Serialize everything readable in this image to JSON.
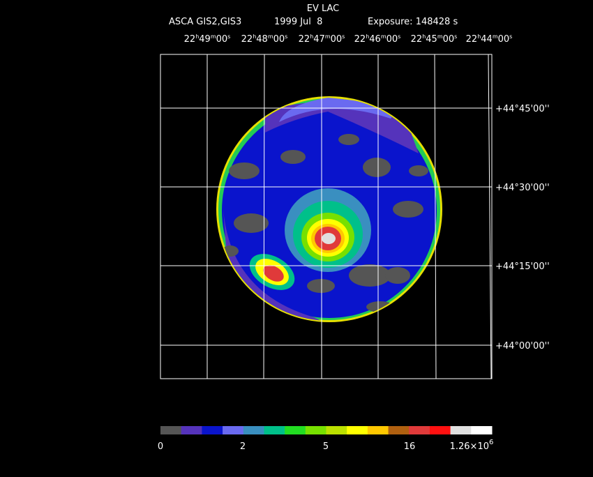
{
  "header": {
    "title": "EV LAC",
    "instrument": "ASCA GIS2,GIS3",
    "date": "1999 Jul  8",
    "exposure": "Exposure: 148428 s"
  },
  "ra_ticks": [
    [
      "22",
      "h",
      "49",
      "m",
      "00",
      "s"
    ],
    [
      "22",
      "h",
      "48",
      "m",
      "00",
      "s"
    ],
    [
      "22",
      "h",
      "47",
      "m",
      "00",
      "s"
    ],
    [
      "22",
      "h",
      "46",
      "m",
      "00",
      "s"
    ],
    [
      "22",
      "h",
      "45",
      "m",
      "00",
      "s"
    ],
    [
      "22",
      "h",
      "44",
      "m",
      "00",
      "s"
    ]
  ],
  "dec_ticks": [
    "+44°45'00''",
    "+44°30'00''",
    "+44°15'00''",
    "+44°00'00''"
  ],
  "colorbar": {
    "colors": [
      "#555555",
      "#5533bb",
      "#0a14cc",
      "#6a6af0",
      "#3a8fc0",
      "#00c08a",
      "#22dd22",
      "#77e000",
      "#bbe000",
      "#ffff00",
      "#ffc800",
      "#b06010",
      "#e03a3a",
      "#ff1010",
      "#e0e0e0",
      "#ffffff"
    ],
    "labels": [
      "0",
      "2",
      "5",
      "16",
      [
        "1.26×10",
        "6"
      ]
    ]
  }
}
